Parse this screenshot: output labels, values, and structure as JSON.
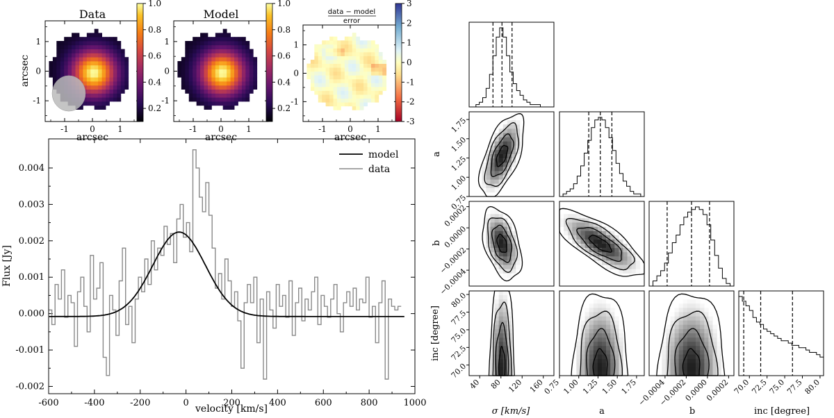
{
  "chart_data": [
    {
      "type": "heatmap",
      "title": "Data",
      "xlabel": "arcsec",
      "ylabel": "arcsec",
      "xlim": [
        -1.7,
        1.7
      ],
      "ylim": [
        -1.7,
        1.7
      ],
      "xticks": [
        "-1",
        "0",
        "1"
      ],
      "yticks": [
        "-1",
        "0",
        "1"
      ],
      "colorbar_ticks": [
        "0.2",
        "0.4",
        "0.6",
        "0.8",
        "1.0"
      ],
      "colormap": "inferno",
      "peak": [
        0.0,
        0.0
      ],
      "beam": {
        "x": -0.85,
        "y": -0.75,
        "major": 0.6
      }
    },
    {
      "type": "heatmap",
      "title": "Model",
      "xlabel": "arcsec",
      "ylabel": "",
      "xlim": [
        -1.7,
        1.7
      ],
      "ylim": [
        -1.7,
        1.7
      ],
      "xticks": [
        "-1",
        "0",
        "1"
      ],
      "yticks": [
        "-1",
        "0",
        "1"
      ],
      "colorbar_ticks": [
        "0.2",
        "0.4",
        "0.6",
        "0.8",
        "1.0"
      ],
      "colormap": "inferno"
    },
    {
      "type": "heatmap",
      "title_numerator": "data − model",
      "title_denominator": "error",
      "xlabel": "arcsec",
      "ylabel": "",
      "xlim": [
        -1.7,
        1.7
      ],
      "ylim": [
        -1.7,
        1.7
      ],
      "xticks": [
        "-1",
        "0",
        "1"
      ],
      "yticks": [
        "-1",
        "0",
        "1"
      ],
      "colorbar_ticks": [
        "3",
        "2",
        "1",
        "0",
        "-1",
        "-2",
        "-3"
      ],
      "colormap": "RdYlBu"
    },
    {
      "type": "line",
      "xlabel": "velocity [km/s]",
      "ylabel": "Flux [Jy]",
      "xlim": [
        -600,
        1000
      ],
      "ylim": [
        -0.0022,
        0.0048
      ],
      "xticks": [
        "-600",
        "-400",
        "-200",
        "0",
        "200",
        "400",
        "600",
        "800",
        "1000"
      ],
      "yticks": [
        "-0.002",
        "-0.001",
        "0.000",
        "0.001",
        "0.002",
        "0.003",
        "0.004"
      ],
      "legend": [
        "model",
        "data"
      ],
      "legend_position": "top-right",
      "model": {
        "name": "model",
        "amplitude": 0.00232,
        "center": -30,
        "sigma": 115,
        "offset": -8e-05
      },
      "series": [
        {
          "name": "data",
          "x_start": -600,
          "x_step": 14,
          "values": [
            0.0001,
            -0.0003,
            0.0008,
            0.0004,
            0.0012,
            -0.0001,
            0.0005,
            0.0003,
            -0.0009,
            0.0006,
            0.001,
            0.0002,
            -0.0005,
            0.0016,
            0.0004,
            0.0007,
            0.0014,
            -0.0012,
            -0.0017,
            0.0005,
            0.0001,
            -0.0006,
            0.0009,
            0.0018,
            -0.0003,
            0.0002,
            -0.0008,
            0.0004,
            0.001,
            0.0006,
            0.0015,
            0.0008,
            0.002,
            0.0012,
            0.0018,
            0.0016,
            0.0024,
            0.0019,
            0.0022,
            0.0014,
            0.0026,
            0.003,
            0.0021,
            0.0025,
            0.0017,
            0.0045,
            0.004,
            0.0032,
            0.0028,
            0.0036,
            0.0027,
            0.0018,
            0.0007,
            0.0011,
            0.0004,
            0.0015,
            0.0009,
            0.0002,
            0.0006,
            -0.0002,
            -0.0015,
            0.0003,
            0.0008,
            0.0003,
            0.001,
            -0.0008,
            0.0004,
            -0.0018,
            0.0006,
            0.0001,
            -0.0004,
            0.0008,
            0.0002,
            0.0005,
            -0.0001,
            0.0009,
            -0.0006,
            0.0003,
            0.0007,
            -0.0002,
            0.0004,
            0.0001,
            0.0006,
            0.001,
            -0.0003,
            0.0005,
            0.0002,
            -0.0001,
            0.0004,
            0.0008,
            0.0,
            -0.0005,
            0.0003,
            0.0006,
            0.0002,
            0.0007,
            0.0001,
            0.0004,
            0.0003,
            0.001,
            -0.0001,
            0.0002,
            -0.0008,
            0.0003,
            0.0009,
            -0.0018,
            0.0004,
            0.0002,
            0.0001,
            0.0002
          ]
        }
      ]
    },
    {
      "type": "corner",
      "parameters": [
        "σ [km/s]",
        "a",
        "b",
        "inc [degree]"
      ],
      "ranges": [
        [
          20,
          180
        ],
        [
          0.75,
          1.85
        ],
        [
          -0.00055,
          0.00025
        ],
        [
          68.5,
          80.5
        ]
      ],
      "ticks": {
        "sigma": [
          "40",
          "80",
          "120",
          "160"
        ],
        "a": [
          "0.75",
          "1.00",
          "1.25",
          "1.50",
          "1.75"
        ],
        "b": [
          "−0.0004",
          "−0.0002",
          "0.0000",
          "0.0002"
        ],
        "inc": [
          "70.0",
          "72.5",
          "75.0",
          "77.5",
          "80.0"
        ],
        "a_y": [
          "0.75",
          "1.00",
          "1.25",
          "1.50",
          "1.75"
        ],
        "b_y": [
          "−0.0004",
          "−0.0002",
          "0.0000",
          "0.0002"
        ],
        "inc_y": [
          "70.0",
          "72.5",
          "75.0",
          "77.5",
          "80.0"
        ]
      },
      "quantiles": {
        "sigma": [
          65,
          82,
          101
        ],
        "a": [
          1.13,
          1.28,
          1.43
        ],
        "b": [
          -0.00038,
          -0.00015,
          2e-05
        ],
        "inc": [
          69.2,
          71.6,
          76.1
        ]
      },
      "hist_sigma": [
        0,
        0,
        1,
        2,
        4,
        8,
        14,
        22,
        30,
        34,
        30,
        22,
        15,
        10,
        7,
        5,
        3,
        2,
        1,
        1,
        1,
        0,
        0,
        0,
        0
      ],
      "hist_a": [
        0,
        1,
        2,
        3,
        5,
        8,
        12,
        17,
        22,
        27,
        30,
        31,
        30,
        27,
        23,
        18,
        13,
        9,
        6,
        4,
        2,
        1,
        1,
        0
      ],
      "hist_b": [
        0,
        2,
        4,
        6,
        9,
        13,
        17,
        20,
        24,
        27,
        29,
        30,
        31,
        30,
        28,
        24,
        18,
        12,
        7,
        3,
        1,
        0
      ],
      "hist_inc": [
        34,
        32,
        30,
        28,
        25,
        23,
        22,
        20,
        19,
        18,
        17,
        16,
        15,
        15,
        14,
        13,
        13,
        12,
        12,
        11,
        10,
        10,
        9,
        8
      ]
    }
  ]
}
